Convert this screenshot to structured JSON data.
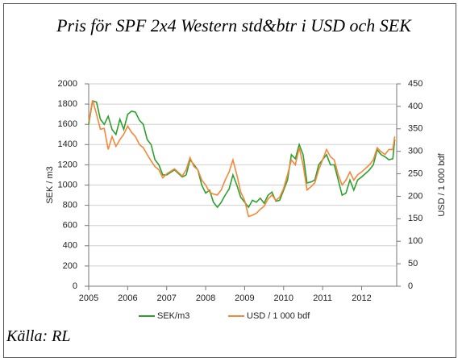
{
  "chart_data": {
    "type": "line",
    "title": "Pris för SPF 2x4 Western std&btr i USD och SEK",
    "source": "Källa: RL",
    "ylabel": "SEK / m3",
    "y2label": "USD / 1 000 bdf",
    "x": [
      2005.0,
      2005.1,
      2005.2,
      2005.3,
      2005.4,
      2005.5,
      2005.6,
      2005.7,
      2005.8,
      2005.9,
      2006.0,
      2006.1,
      2006.2,
      2006.3,
      2006.4,
      2006.5,
      2006.6,
      2006.7,
      2006.8,
      2006.9,
      2007.0,
      2007.2,
      2007.4,
      2007.5,
      2007.6,
      2007.7,
      2007.8,
      2007.9,
      2008.0,
      2008.1,
      2008.2,
      2008.3,
      2008.4,
      2008.5,
      2008.6,
      2008.7,
      2008.8,
      2008.9,
      2009.0,
      2009.1,
      2009.2,
      2009.3,
      2009.4,
      2009.5,
      2009.6,
      2009.7,
      2009.8,
      2009.9,
      2010.0,
      2010.1,
      2010.2,
      2010.3,
      2010.4,
      2010.5,
      2010.6,
      2010.7,
      2010.8,
      2010.9,
      2011.0,
      2011.1,
      2011.2,
      2011.3,
      2011.4,
      2011.5,
      2011.6,
      2011.7,
      2011.8,
      2011.9,
      2012.0,
      2012.2,
      2012.3,
      2012.4,
      2012.5,
      2012.6,
      2012.7,
      2012.8,
      2012.85
    ],
    "series": [
      {
        "name": "SEK/m3",
        "color": "#2ca02c",
        "values": [
          1600,
          1830,
          1820,
          1650,
          1600,
          1680,
          1550,
          1500,
          1650,
          1550,
          1700,
          1730,
          1720,
          1640,
          1600,
          1450,
          1400,
          1250,
          1200,
          1100,
          1100,
          1150,
          1080,
          1100,
          1250,
          1200,
          1150,
          1000,
          920,
          950,
          830,
          780,
          830,
          900,
          960,
          1100,
          1000,
          880,
          830,
          780,
          850,
          830,
          870,
          820,
          900,
          930,
          840,
          850,
          950,
          1050,
          1300,
          1260,
          1400,
          1300,
          1020,
          1030,
          1050,
          1200,
          1250,
          1300,
          1200,
          1200,
          1050,
          900,
          920,
          1050,
          950,
          1050,
          1080,
          1150,
          1200,
          1350,
          1300,
          1280,
          1250,
          1260,
          1450
        ]
      },
      {
        "name": "USD / 1 000 bdf",
        "color": "#f5873a",
        "axis": "y2",
        "values": [
          365,
          414,
          383,
          349,
          351,
          304,
          333,
          311,
          326,
          338,
          356,
          342,
          333,
          315,
          308,
          293,
          279,
          266,
          259,
          241,
          250,
          261,
          245,
          259,
          286,
          266,
          259,
          236,
          225,
          209,
          205,
          203,
          214,
          236,
          254,
          281,
          248,
          209,
          191,
          155,
          158,
          162,
          171,
          178,
          194,
          203,
          191,
          198,
          218,
          248,
          281,
          270,
          308,
          270,
          214,
          221,
          230,
          259,
          281,
          304,
          288,
          281,
          248,
          225,
          236,
          254,
          236,
          248,
          254,
          270,
          281,
          308,
          299,
          293,
          304,
          304,
          333
        ]
      }
    ],
    "xlim": [
      2005,
      2012.9
    ],
    "xticks": [
      2005,
      2006,
      2007,
      2008,
      2009,
      2010,
      2011,
      2012
    ],
    "ylim": [
      0,
      2000
    ],
    "yticks": [
      0,
      200,
      400,
      600,
      800,
      1000,
      1200,
      1400,
      1600,
      1800,
      2000
    ],
    "y2lim": [
      0,
      450
    ],
    "y2ticks": [
      0,
      50,
      100,
      150,
      200,
      250,
      300,
      350,
      400,
      450
    ],
    "grid": true,
    "legend": "bottom"
  }
}
